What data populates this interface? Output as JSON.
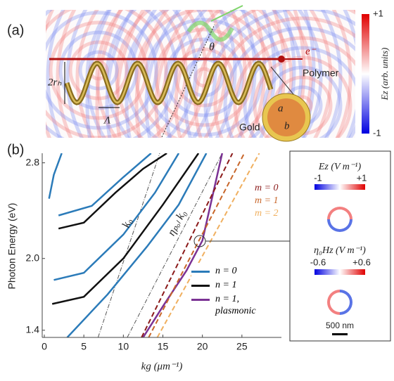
{
  "panel_a": {
    "label": "(a)",
    "theta": "θ",
    "electron": "e⁻",
    "diameter": "2rₕ",
    "pitch": "Λ",
    "polymer": "Polymer",
    "gold": "Gold",
    "inner_radius": "a",
    "outer_radius": "b",
    "colorbar": {
      "title": "Ez (arb. units)",
      "ticks": [
        {
          "value": 1,
          "label": "+1"
        },
        {
          "value": -1,
          "label": "-1"
        }
      ]
    }
  },
  "chart_data": {
    "type": "line",
    "panel_label": "(b)",
    "x_label": "kg (μm⁻¹)",
    "y_label": "Photon Energy (eV)",
    "xlim": [
      0,
      30
    ],
    "ylim": [
      1.34,
      2.88
    ],
    "xticks": [
      0,
      5,
      10,
      15,
      20,
      25
    ],
    "yticks": [
      1.4,
      {
        "value": 2,
        "label": "2.0"
      },
      2.8
    ],
    "series": [
      {
        "name": "n = 0",
        "color": "#2b7bb9",
        "style": "solid",
        "legend": true,
        "curves": [
          {
            "x": [
              2.9,
              8,
              13,
              17,
              20.5
            ],
            "values": [
              1.34,
              1.7,
              2.1,
              2.45,
              2.88
            ]
          },
          {
            "x": [
              1.2,
              5,
              10,
              14,
              17
            ],
            "values": [
              1.82,
              1.88,
              2.2,
              2.55,
              2.88
            ]
          },
          {
            "x": [
              1.8,
              6,
              10,
              13.5
            ],
            "values": [
              2.36,
              2.44,
              2.68,
              2.88
            ]
          },
          {
            "x": [
              0.6,
              1.2,
              2.2
            ],
            "values": [
              2.5,
              2.7,
              2.88
            ]
          }
        ]
      },
      {
        "name": "n = 1",
        "color": "#111111",
        "style": "solid",
        "legend": true,
        "curves": [
          {
            "x": [
              1,
              5,
              10,
              15,
              19.5
            ],
            "values": [
              1.62,
              1.68,
              2,
              2.45,
              2.88
            ]
          },
          {
            "x": [
              1.8,
              5,
              9,
              12.5,
              15.5
            ],
            "values": [
              2.25,
              2.3,
              2.55,
              2.75,
              2.88
            ]
          }
        ]
      },
      {
        "name": "n = 1, plasmonic",
        "color": "#7b3294",
        "style": "solid",
        "legend": true,
        "curves": [
          {
            "x": [
              12.5,
              15,
              18,
              20,
              22.5
            ],
            "values": [
              1.34,
              1.6,
              1.9,
              2.15,
              2.88
            ]
          }
        ]
      },
      {
        "name": "m = 0",
        "color": "#8b1a1a",
        "style": "dashed",
        "legend": false,
        "curves": [
          {
            "x": [
              12.3,
              23.8
            ],
            "values": [
              1.34,
              2.88
            ]
          }
        ]
      },
      {
        "name": "m = 1",
        "color": "#c8662a",
        "style": "dashed",
        "legend": false,
        "curves": [
          {
            "x": [
              13.2,
              25.3
            ],
            "values": [
              1.34,
              2.88
            ]
          }
        ]
      },
      {
        "name": "m = 2",
        "color": "#f0b060",
        "style": "dashed",
        "legend": false,
        "curves": [
          {
            "x": [
              14.3,
              27.2
            ],
            "values": [
              1.34,
              2.88
            ]
          }
        ]
      }
    ],
    "light_lines": [
      {
        "label": "k₀",
        "x": [
          6.8,
          14.6
        ],
        "values": [
          1.34,
          2.88
        ]
      },
      {
        "label": "ηₚₒₗ k₀",
        "x": [
          10.5,
          22.5
        ],
        "values": [
          1.34,
          2.88
        ]
      }
    ]
  },
  "inset": {
    "ez_title": "Ez (V m⁻¹)",
    "ez_min": "-1",
    "ez_max": "+1",
    "hz_title": "η₀Hz (V m⁻¹)",
    "hz_min": "-0.6",
    "hz_max": "+0.6",
    "scale": "500 nm"
  }
}
